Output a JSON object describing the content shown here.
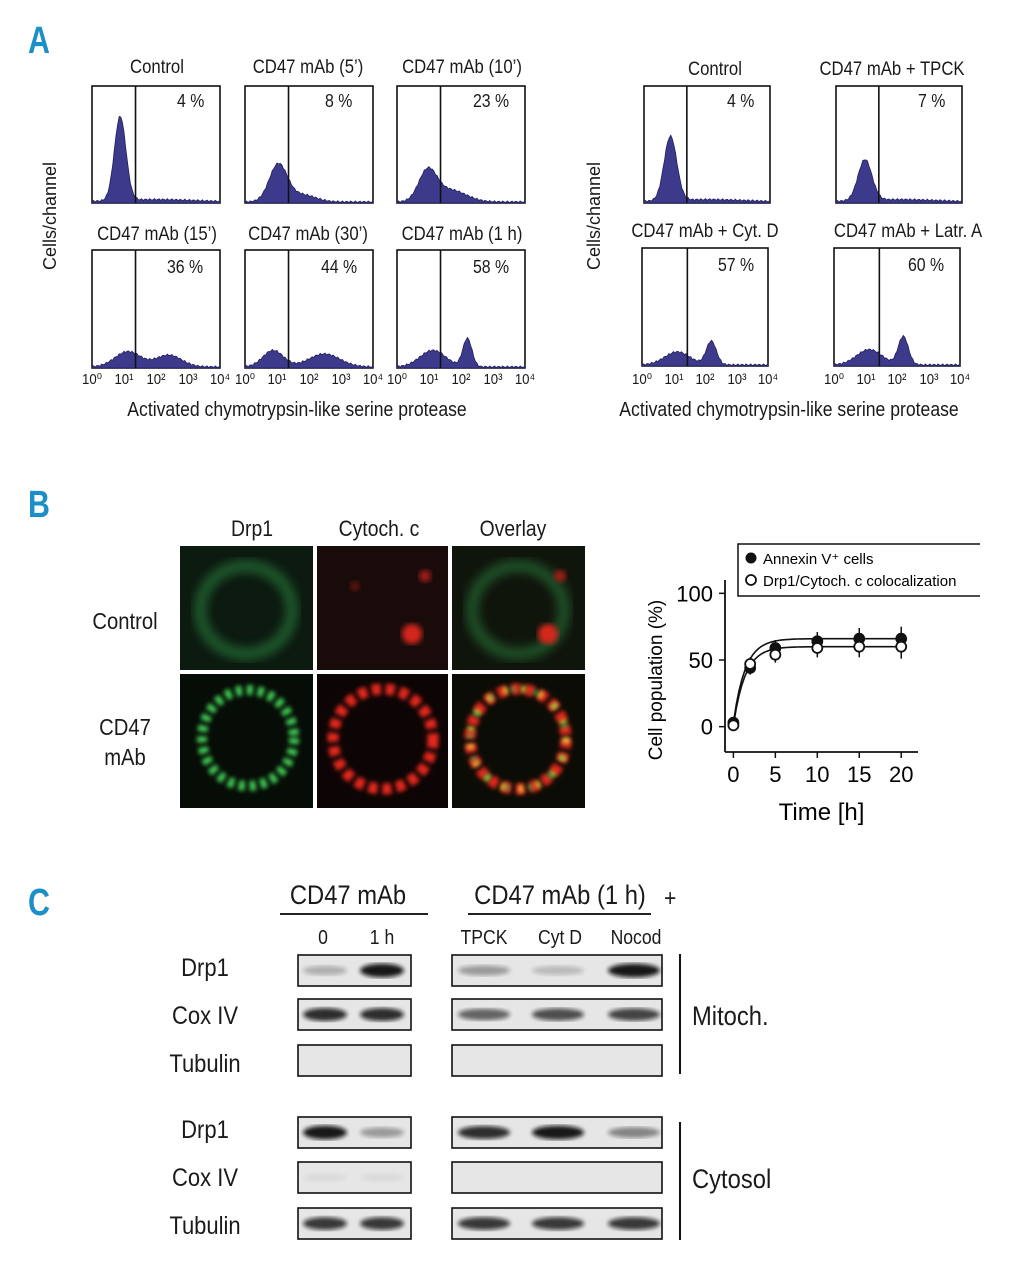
{
  "panel_labels": {
    "a": "A",
    "b": "B",
    "c": "C"
  },
  "colors": {
    "panel_letter": "#1c8fc9",
    "histogram_fill": "#3d3a8c",
    "green": "#35c24a",
    "red": "#e3261c",
    "yellow": "#e8d23a"
  },
  "panelA": {
    "ylabel": "Cells/channel",
    "xlabel": "Activated chymotrypsin-like serine protease",
    "axis_ticks": [
      "10⁰",
      "10¹",
      "10²",
      "10³",
      "10⁴"
    ],
    "left_plots": [
      {
        "title": "Control",
        "percent": "4 %"
      },
      {
        "title": "CD47 mAb (5’)",
        "percent": "8 %"
      },
      {
        "title": "CD47 mAb (10’)",
        "percent": "23 %"
      },
      {
        "title": "CD47 mAb (15’)",
        "percent": "36 %"
      },
      {
        "title": "CD47 mAb (30’)",
        "percent": "44 %"
      },
      {
        "title": "CD47 mAb (1 h)",
        "percent": "58 %"
      }
    ],
    "right_plots": [
      {
        "title": "Control",
        "percent": "4 %"
      },
      {
        "title": "CD47 mAb + TPCK",
        "percent": "7 %"
      },
      {
        "title": "CD47 mAb + Cyt. D",
        "percent": "57 %"
      },
      {
        "title": "CD47 mAb + Latr. A",
        "percent": "60 %"
      }
    ]
  },
  "panelB": {
    "columns": [
      "Drp1",
      "Cytoch. c",
      "Overlay"
    ],
    "rows": [
      "Control",
      "CD47",
      "mAb"
    ],
    "chart_data": {
      "type": "line",
      "xlabel": "Time [h]",
      "ylabel": "Cell population (%)",
      "xlim": [
        -1,
        22
      ],
      "ylim": [
        -10,
        110
      ],
      "x_ticks": [
        "0",
        "5",
        "10",
        "15",
        "20"
      ],
      "y_ticks": [
        "0",
        "50",
        "100"
      ],
      "legend_position": "top",
      "series": [
        {
          "name": "Annexin V⁺ cells",
          "marker": "filled",
          "x": [
            0,
            2,
            5,
            10,
            15,
            20
          ],
          "y": [
            3,
            44,
            59,
            64,
            66,
            66
          ],
          "err": [
            3,
            5,
            6,
            7,
            8,
            9
          ]
        },
        {
          "name": "Drp1/Cytoch. c colocalization",
          "marker": "open",
          "x": [
            0,
            2,
            5,
            10,
            15,
            20
          ],
          "y": [
            1,
            47,
            54,
            59,
            60,
            60
          ],
          "err": [
            3,
            5,
            6,
            7,
            8,
            9
          ]
        }
      ]
    }
  },
  "panelC": {
    "group1_title": "CD47 mAb",
    "group2_title": "CD47 mAb (1 h)",
    "plus": "+",
    "lanes1": [
      "0",
      "1 h"
    ],
    "lanes2": [
      "TPCK",
      "Cyt D",
      "Nocod"
    ],
    "mito_rows": [
      "Drp1",
      "Cox IV",
      "Tubulin"
    ],
    "cyto_rows": [
      "Drp1",
      "Cox IV",
      "Tubulin"
    ],
    "fraction_mito": "Mitoch.",
    "fraction_cyto": "Cytosol"
  }
}
